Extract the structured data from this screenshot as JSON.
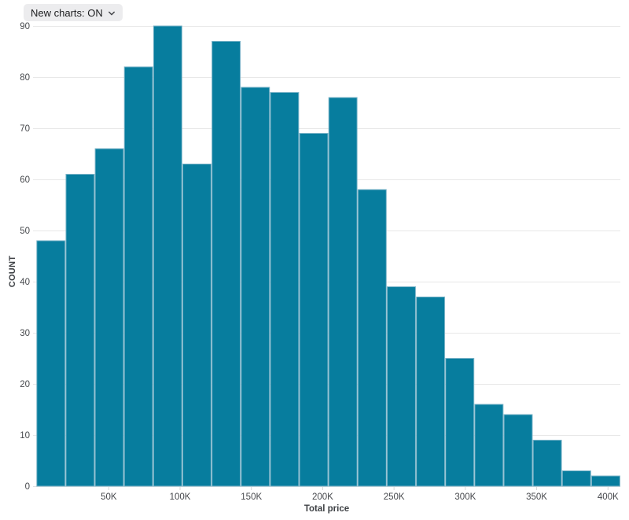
{
  "toolbar": {
    "new_charts_dropdown": "New charts: ON"
  },
  "chart_data": {
    "type": "histogram",
    "title": "",
    "xlabel": "Total price",
    "ylabel": "COUNT",
    "values": [
      48,
      61,
      66,
      82,
      90,
      63,
      87,
      78,
      77,
      69,
      76,
      58,
      39,
      37,
      25,
      16,
      14,
      9,
      3,
      2
    ],
    "x_ticks": [
      "50K",
      "100K",
      "150K",
      "200K",
      "250K",
      "300K",
      "350K",
      "400K"
    ],
    "y_ticks": [
      0,
      10,
      20,
      30,
      40,
      50,
      60,
      70,
      80,
      90
    ],
    "ylim": [
      0,
      90
    ],
    "grid": "horizontal",
    "legend": "none",
    "colors": {
      "bar_fill": "#077d9e",
      "bar_stroke": "#7db5c9",
      "gridline": "#e8e8e8",
      "zero_line": "#e0e0e0",
      "x_tick_mark": "#d8d8d8",
      "tick_label": "#47494d",
      "axis_title": "#3e4145",
      "background": "#ffffff"
    }
  }
}
